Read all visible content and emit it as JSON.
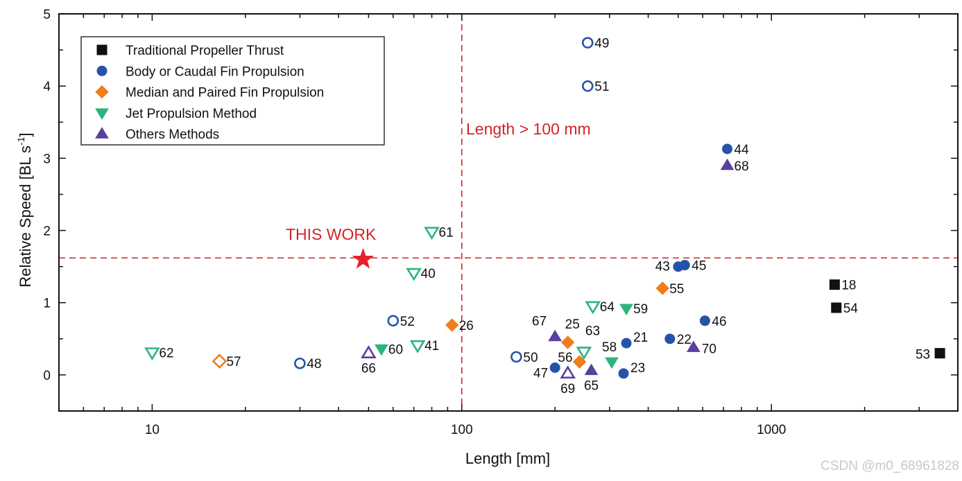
{
  "chart_data": {
    "type": "scatter",
    "xscale": "log",
    "xlim": [
      5,
      4000
    ],
    "ylim": [
      -0.5,
      5
    ],
    "xlabel": "Length [mm]",
    "ylabel_main": "Relative Speed [BL s",
    "ylabel_sup": "-1",
    "ylabel_end": "]",
    "x_ticks": [
      10,
      100,
      1000
    ],
    "x_tick_labels": [
      "10",
      "100",
      "1000"
    ],
    "y_ticks": [
      0,
      1,
      2,
      3,
      4,
      5
    ],
    "y_tick_labels": [
      "0",
      "1",
      "2",
      "3",
      "4",
      "5"
    ],
    "legend_position": "top-left",
    "series": [
      {
        "name": "Traditional Propeller Thrust",
        "marker": "square",
        "color": "#111111",
        "points": [
          {
            "label": "18",
            "x": 1600,
            "y": 1.25,
            "filled": true
          },
          {
            "label": "54",
            "x": 1620,
            "y": 0.93,
            "filled": true
          },
          {
            "label": "53",
            "x": 3500,
            "y": 0.3,
            "filled": true
          }
        ]
      },
      {
        "name": "Body or Caudal Fin Propulsion",
        "marker": "circle",
        "color": "#2653a8",
        "points": [
          {
            "label": "49",
            "x": 255,
            "y": 4.6,
            "filled": false
          },
          {
            "label": "51",
            "x": 255,
            "y": 4.0,
            "filled": false
          },
          {
            "label": "44",
            "x": 720,
            "y": 3.13,
            "filled": true
          },
          {
            "label": "43",
            "x": 500,
            "y": 1.5,
            "filled": true
          },
          {
            "label": "45",
            "x": 525,
            "y": 1.52,
            "filled": true
          },
          {
            "label": "46",
            "x": 610,
            "y": 0.75,
            "filled": true
          },
          {
            "label": "22",
            "x": 470,
            "y": 0.5,
            "filled": true
          },
          {
            "label": "21",
            "x": 340,
            "y": 0.44,
            "filled": true
          },
          {
            "label": "23",
            "x": 333,
            "y": 0.02,
            "filled": true
          },
          {
            "label": "47",
            "x": 200,
            "y": 0.1,
            "filled": true
          },
          {
            "label": "50",
            "x": 150,
            "y": 0.25,
            "filled": false
          },
          {
            "label": "52",
            "x": 60,
            "y": 0.75,
            "filled": false
          },
          {
            "label": "48",
            "x": 30,
            "y": 0.16,
            "filled": false
          }
        ]
      },
      {
        "name": "Median and Paired Fin Propulsion",
        "marker": "diamond",
        "color": "#f07d1a",
        "points": [
          {
            "label": "55",
            "x": 445,
            "y": 1.2,
            "filled": true
          },
          {
            "label": "26",
            "x": 93,
            "y": 0.69,
            "filled": true
          },
          {
            "label": "25",
            "x": 220,
            "y": 0.45,
            "filled": true
          },
          {
            "label": "56",
            "x": 240,
            "y": 0.18,
            "filled": true
          },
          {
            "label": "57",
            "x": 16.5,
            "y": 0.19,
            "filled": false
          }
        ]
      },
      {
        "name": "Jet Propulsion Method",
        "marker": "triangle-down",
        "color": "#2db37c",
        "points": [
          {
            "label": "61",
            "x": 80,
            "y": 1.98,
            "filled": false
          },
          {
            "label": "40",
            "x": 70,
            "y": 1.41,
            "filled": false
          },
          {
            "label": "41",
            "x": 72,
            "y": 0.41,
            "filled": false
          },
          {
            "label": "60",
            "x": 55,
            "y": 0.36,
            "filled": true
          },
          {
            "label": "62",
            "x": 10,
            "y": 0.31,
            "filled": false
          },
          {
            "label": "64",
            "x": 265,
            "y": 0.95,
            "filled": false
          },
          {
            "label": "59",
            "x": 340,
            "y": 0.92,
            "filled": true
          },
          {
            "label": "63",
            "x": 248,
            "y": 0.32,
            "filled": false
          },
          {
            "label": "58",
            "x": 305,
            "y": 0.18,
            "filled": true
          }
        ]
      },
      {
        "name": "Others Methods",
        "marker": "triangle-up",
        "color": "#5b3f9e",
        "points": [
          {
            "label": "68",
            "x": 720,
            "y": 2.9,
            "filled": true
          },
          {
            "label": "70",
            "x": 560,
            "y": 0.38,
            "filled": true
          },
          {
            "label": "67",
            "x": 200,
            "y": 0.53,
            "filled": true
          },
          {
            "label": "69",
            "x": 220,
            "y": 0.02,
            "filled": false
          },
          {
            "label": "65",
            "x": 262,
            "y": 0.06,
            "filled": true
          },
          {
            "label": "66",
            "x": 50,
            "y": 0.3,
            "filled": false
          }
        ]
      }
    ],
    "this_work": {
      "label": "THIS WORK",
      "x": 48,
      "y": 1.6,
      "marker": "star",
      "color": "#e8202a"
    },
    "threshold_x": 100,
    "threshold_y": 1.62,
    "threshold_label": "Length > 100 mm",
    "threshold_color": "#d2232a"
  },
  "watermark": "CSDN @m0_68961828"
}
